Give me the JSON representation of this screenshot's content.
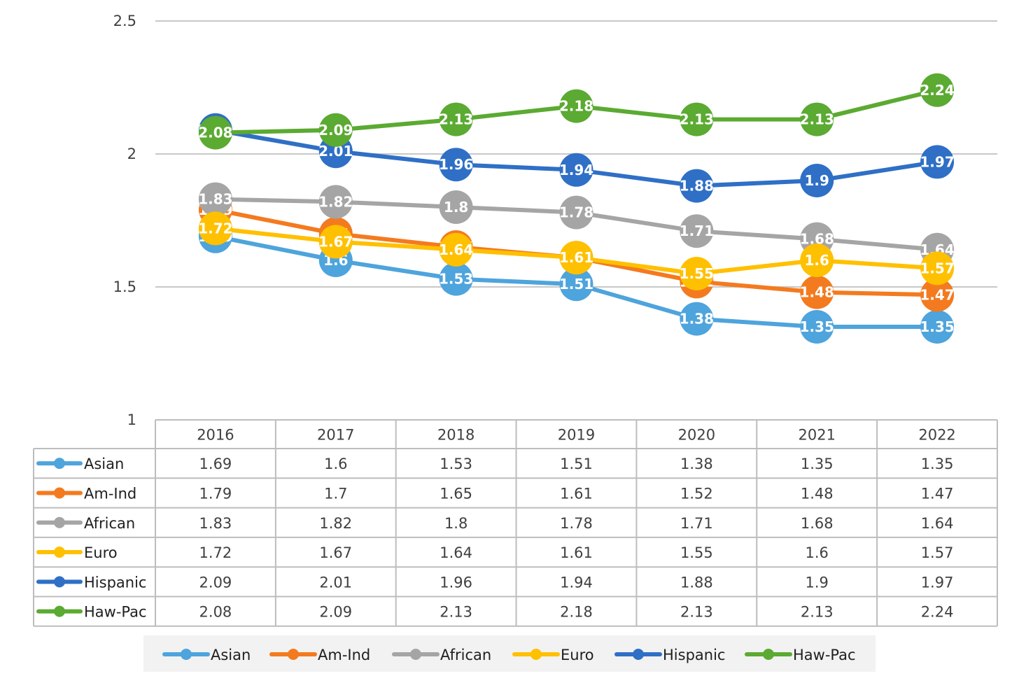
{
  "chart_data": {
    "type": "line",
    "categories": [
      "2016",
      "2017",
      "2018",
      "2019",
      "2020",
      "2021",
      "2022"
    ],
    "ylim": [
      1,
      2.5
    ],
    "yticks": [
      "1",
      "1.5",
      "2",
      "2.5"
    ],
    "grid": true,
    "legend_position": "bottom",
    "data_table": true,
    "series": [
      {
        "name": "Asian",
        "color": "#4EA4DC",
        "values": [
          1.69,
          1.6,
          1.53,
          1.51,
          1.38,
          1.35,
          1.35
        ]
      },
      {
        "name": "Am-Ind",
        "color": "#F47A1F",
        "values": [
          1.79,
          1.7,
          1.65,
          1.61,
          1.52,
          1.48,
          1.47
        ]
      },
      {
        "name": "African",
        "color": "#A5A5A5",
        "values": [
          1.83,
          1.82,
          1.8,
          1.78,
          1.71,
          1.68,
          1.64
        ]
      },
      {
        "name": "Euro",
        "color": "#FFC000",
        "values": [
          1.72,
          1.67,
          1.64,
          1.61,
          1.55,
          1.6,
          1.57
        ]
      },
      {
        "name": "Hispanic",
        "color": "#2F6FC6",
        "values": [
          2.09,
          2.01,
          1.96,
          1.94,
          1.88,
          1.9,
          1.97
        ]
      },
      {
        "name": "Haw-Pac",
        "color": "#5BAA32",
        "values": [
          2.08,
          2.09,
          2.13,
          2.18,
          2.13,
          2.13,
          2.24
        ]
      }
    ]
  }
}
